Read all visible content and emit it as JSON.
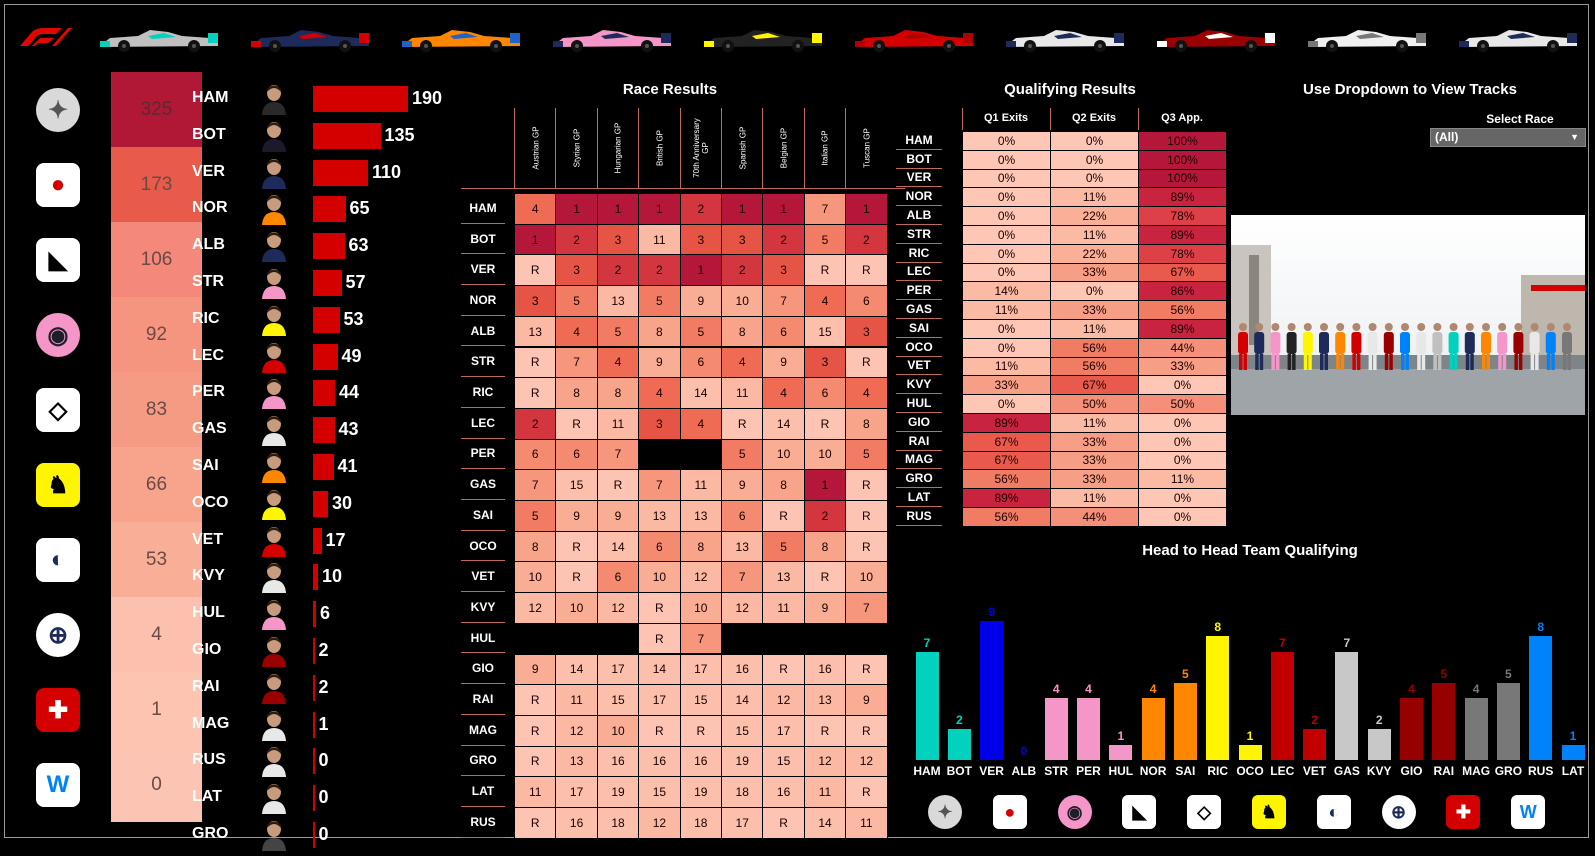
{
  "titles": {
    "race": "Race Results",
    "qual": "Qualifying Results",
    "tracks": "Use Dropdown to View Tracks",
    "select_race": "Select Race",
    "h2h": "Head to Head Team Qualifying"
  },
  "dropdown": {
    "value": "(All)"
  },
  "cars": [
    "mercedes-car",
    "redbull-car",
    "mclaren-car",
    "racingpoint-car",
    "renault-car",
    "ferrari-car",
    "alphatauri-car",
    "alfaromeo-car",
    "haas-car",
    "williams-car"
  ],
  "teams": [
    {
      "logo": "mercedes-logo-icon",
      "points": "325",
      "color": "#b01835"
    },
    {
      "logo": "redbull-logo-icon",
      "points": "173",
      "color": "#e85a4a"
    },
    {
      "logo": "mclaren-logo-icon",
      "points": "106",
      "color": "#f4887a"
    },
    {
      "logo": "racingpoint-logo-icon",
      "points": "92",
      "color": "#f6957f"
    },
    {
      "logo": "renault-logo-icon",
      "points": "83",
      "color": "#f69b83"
    },
    {
      "logo": "ferrari-logo-icon",
      "points": "66",
      "color": "#f8a48d"
    },
    {
      "logo": "alphatauri-logo-icon",
      "points": "53",
      "color": "#f9ae97"
    },
    {
      "logo": "alfaromeo-logo-icon",
      "points": "4",
      "color": "#fcc1ae"
    },
    {
      "logo": "haas-logo-icon",
      "points": "1",
      "color": "#fcc4b1"
    },
    {
      "logo": "williams-logo-icon",
      "points": "0",
      "color": "#fcc4b2"
    }
  ],
  "drivers": [
    {
      "code": "HAM",
      "points": 190
    },
    {
      "code": "BOT",
      "points": 135
    },
    {
      "code": "VER",
      "points": 110
    },
    {
      "code": "NOR",
      "points": 65
    },
    {
      "code": "ALB",
      "points": 63
    },
    {
      "code": "STR",
      "points": 57
    },
    {
      "code": "RIC",
      "points": 53
    },
    {
      "code": "LEC",
      "points": 49
    },
    {
      "code": "PER",
      "points": 44
    },
    {
      "code": "GAS",
      "points": 43
    },
    {
      "code": "SAI",
      "points": 41
    },
    {
      "code": "OCO",
      "points": 30
    },
    {
      "code": "VET",
      "points": 17
    },
    {
      "code": "KVY",
      "points": 10
    },
    {
      "code": "HUL",
      "points": 6
    },
    {
      "code": "GIO",
      "points": 2
    },
    {
      "code": "RAI",
      "points": 2
    },
    {
      "code": "MAG",
      "points": 1
    },
    {
      "code": "RUS",
      "points": 0
    },
    {
      "code": "LAT",
      "points": 0
    },
    {
      "code": "GRO",
      "points": 0
    }
  ],
  "race_columns": [
    "Austrian GP",
    "Styrian GP",
    "Hungarian GP",
    "British GP",
    "70th Anniversary GP",
    "Spanish GP",
    "Belgian GP",
    "Italian GP",
    "Tuscan GP"
  ],
  "race_rows": [
    {
      "d": "HAM",
      "r": [
        "4",
        "1",
        "1",
        "1",
        "2",
        "1",
        "1",
        "7",
        "1"
      ]
    },
    {
      "d": "BOT",
      "r": [
        "1",
        "2",
        "3",
        "11",
        "3",
        "3",
        "2",
        "5",
        "2"
      ]
    },
    {
      "d": "VER",
      "r": [
        "R",
        "3",
        "2",
        "2",
        "1",
        "2",
        "3",
        "R",
        "R"
      ]
    },
    {
      "d": "NOR",
      "r": [
        "3",
        "5",
        "13",
        "5",
        "9",
        "10",
        "7",
        "4",
        "6"
      ]
    },
    {
      "d": "ALB",
      "r": [
        "13",
        "4",
        "5",
        "8",
        "5",
        "8",
        "6",
        "15",
        "3"
      ]
    },
    {
      "d": "STR",
      "r": [
        "R",
        "7",
        "4",
        "9",
        "6",
        "4",
        "9",
        "3",
        "R"
      ]
    },
    {
      "d": "RIC",
      "r": [
        "R",
        "8",
        "8",
        "4",
        "14",
        "11",
        "4",
        "6",
        "4"
      ]
    },
    {
      "d": "LEC",
      "r": [
        "2",
        "R",
        "11",
        "3",
        "4",
        "R",
        "14",
        "R",
        "8"
      ]
    },
    {
      "d": "PER",
      "r": [
        "6",
        "6",
        "7",
        "",
        "",
        "5",
        "10",
        "10",
        "5"
      ]
    },
    {
      "d": "GAS",
      "r": [
        "7",
        "15",
        "R",
        "7",
        "11",
        "9",
        "8",
        "1",
        "R"
      ]
    },
    {
      "d": "SAI",
      "r": [
        "5",
        "9",
        "9",
        "13",
        "13",
        "6",
        "R",
        "2",
        "R"
      ]
    },
    {
      "d": "OCO",
      "r": [
        "8",
        "R",
        "14",
        "6",
        "8",
        "13",
        "5",
        "8",
        "R"
      ]
    },
    {
      "d": "VET",
      "r": [
        "10",
        "R",
        "6",
        "10",
        "12",
        "7",
        "13",
        "R",
        "10"
      ]
    },
    {
      "d": "KVY",
      "r": [
        "12",
        "10",
        "12",
        "R",
        "10",
        "12",
        "11",
        "9",
        "7"
      ]
    },
    {
      "d": "HUL",
      "r": [
        "",
        "",
        "",
        "R",
        "7",
        "",
        "",
        "",
        ""
      ]
    },
    {
      "d": "GIO",
      "r": [
        "9",
        "14",
        "17",
        "14",
        "17",
        "16",
        "R",
        "16",
        "R"
      ]
    },
    {
      "d": "RAI",
      "r": [
        "R",
        "11",
        "15",
        "17",
        "15",
        "14",
        "12",
        "13",
        "9"
      ]
    },
    {
      "d": "MAG",
      "r": [
        "R",
        "12",
        "10",
        "R",
        "R",
        "15",
        "17",
        "R",
        "R"
      ]
    },
    {
      "d": "GRO",
      "r": [
        "R",
        "13",
        "16",
        "16",
        "16",
        "19",
        "15",
        "12",
        "12"
      ]
    },
    {
      "d": "LAT",
      "r": [
        "11",
        "17",
        "19",
        "15",
        "19",
        "18",
        "16",
        "11",
        "R"
      ]
    },
    {
      "d": "RUS",
      "r": [
        "R",
        "16",
        "18",
        "12",
        "18",
        "17",
        "R",
        "14",
        "11"
      ]
    }
  ],
  "qual_columns": [
    "Q1 Exits",
    "Q2 Exits",
    "Q3 App."
  ],
  "qual_rows": [
    {
      "d": "HAM",
      "v": [
        "0%",
        "0%",
        "100%"
      ]
    },
    {
      "d": "BOT",
      "v": [
        "0%",
        "0%",
        "100%"
      ]
    },
    {
      "d": "VER",
      "v": [
        "0%",
        "0%",
        "100%"
      ]
    },
    {
      "d": "NOR",
      "v": [
        "0%",
        "11%",
        "89%"
      ]
    },
    {
      "d": "ALB",
      "v": [
        "0%",
        "22%",
        "78%"
      ]
    },
    {
      "d": "STR",
      "v": [
        "0%",
        "11%",
        "89%"
      ]
    },
    {
      "d": "RIC",
      "v": [
        "0%",
        "22%",
        "78%"
      ]
    },
    {
      "d": "LEC",
      "v": [
        "0%",
        "33%",
        "67%"
      ]
    },
    {
      "d": "PER",
      "v": [
        "14%",
        "0%",
        "86%"
      ]
    },
    {
      "d": "GAS",
      "v": [
        "11%",
        "33%",
        "56%"
      ]
    },
    {
      "d": "SAI",
      "v": [
        "0%",
        "11%",
        "89%"
      ]
    },
    {
      "d": "OCO",
      "v": [
        "0%",
        "56%",
        "44%"
      ]
    },
    {
      "d": "VET",
      "v": [
        "11%",
        "56%",
        "33%"
      ]
    },
    {
      "d": "KVY",
      "v": [
        "33%",
        "67%",
        "0%"
      ]
    },
    {
      "d": "HUL",
      "v": [
        "0%",
        "50%",
        "50%"
      ]
    },
    {
      "d": "GIO",
      "v": [
        "89%",
        "11%",
        "0%"
      ]
    },
    {
      "d": "RAI",
      "v": [
        "67%",
        "33%",
        "0%"
      ]
    },
    {
      "d": "MAG",
      "v": [
        "67%",
        "33%",
        "0%"
      ]
    },
    {
      "d": "GRO",
      "v": [
        "56%",
        "33%",
        "11%"
      ]
    },
    {
      "d": "LAT",
      "v": [
        "89%",
        "11%",
        "0%"
      ]
    },
    {
      "d": "RUS",
      "v": [
        "56%",
        "44%",
        "0%"
      ]
    }
  ],
  "h2h": [
    {
      "d": "HAM",
      "v": 7,
      "c": "#00d2be"
    },
    {
      "d": "BOT",
      "v": 2,
      "c": "#00d2be"
    },
    {
      "d": "VER",
      "v": 9,
      "c": "#0000e8"
    },
    {
      "d": "ALB",
      "v": 0,
      "c": "#0000e8"
    },
    {
      "d": "STR",
      "v": 4,
      "c": "#f596c8"
    },
    {
      "d": "PER",
      "v": 4,
      "c": "#f596c8"
    },
    {
      "d": "HUL",
      "v": 1,
      "c": "#f596c8"
    },
    {
      "d": "NOR",
      "v": 4,
      "c": "#ff8700"
    },
    {
      "d": "SAI",
      "v": 5,
      "c": "#ff8700"
    },
    {
      "d": "RIC",
      "v": 8,
      "c": "#fff500"
    },
    {
      "d": "OCO",
      "v": 1,
      "c": "#fff500"
    },
    {
      "d": "LEC",
      "v": 7,
      "c": "#c00000"
    },
    {
      "d": "VET",
      "v": 2,
      "c": "#c00000"
    },
    {
      "d": "GAS",
      "v": 7,
      "c": "#c8c8c8"
    },
    {
      "d": "KVY",
      "v": 2,
      "c": "#c8c8c8"
    },
    {
      "d": "GIO",
      "v": 4,
      "c": "#960000"
    },
    {
      "d": "RAI",
      "v": 5,
      "c": "#960000"
    },
    {
      "d": "MAG",
      "v": 4,
      "c": "#787878"
    },
    {
      "d": "GRO",
      "v": 5,
      "c": "#787878"
    },
    {
      "d": "RUS",
      "v": 8,
      "c": "#0082fa"
    },
    {
      "d": "LAT",
      "v": 1,
      "c": "#0082fa"
    }
  ],
  "bottom_logos": [
    "mercedes-logo-icon",
    "redbull-logo-icon",
    "racingpoint-logo-icon",
    "mclaren-logo-icon",
    "renault-logo-icon",
    "ferrari-logo-icon",
    "alphatauri-logo-icon",
    "alfaromeo-logo-icon",
    "haas-logo-icon",
    "williams-logo-icon"
  ]
}
